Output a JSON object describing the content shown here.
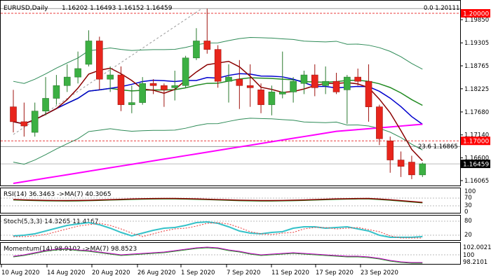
{
  "header": {
    "symbol": "EURUSD,Daily",
    "ohlc": "1.16202 1.16493 1.16152 1.16459",
    "fib_top_label": "0.0 1.20111",
    "fib_mid_label": "23.6 1.16865"
  },
  "colors": {
    "bull": "#3cb043",
    "bear": "#e8251c",
    "sma_fast": "#8b0000",
    "sma_mid": "#0000cd",
    "sma_slow": "#ff00ff",
    "bb": "#2e8b57",
    "ema": "#228b22",
    "hline_red": "#e83b3b",
    "price_tag": "#ff0000",
    "current_tag": "#000000",
    "cyan": "#35c2c9"
  },
  "price_axis": {
    "ticks": [
      "1.19850",
      "1.19305",
      "1.18765",
      "1.18225",
      "1.17680",
      "1.17140",
      "1.16600",
      "1.16065"
    ],
    "levels": {
      "resistance": "1.20000",
      "support": "1.17000",
      "current": "1.16459"
    }
  },
  "panels": {
    "rsi": {
      "label": "RSI(14) 36.3463 ->MA(7) 40.3065",
      "ticks": [
        "100",
        "70",
        "30",
        "0"
      ]
    },
    "stoch": {
      "label": "Stoch(5,3,3) 14.3265 11.4167",
      "ticks": [
        "80",
        "20"
      ]
    },
    "momentum": {
      "label": "Momentum(14) 98.9102 ->MA(7) 98.8523",
      "ticks": [
        "102.0021",
        "100",
        "98.2101"
      ]
    }
  },
  "x_axis": {
    "labels": [
      "10 Aug 2020",
      "14 Aug 2020",
      "20 Aug 2020",
      "26 Aug 2020",
      "1 Sep 2020",
      "7 Sep 2020",
      "11 Sep 2020",
      "17 Sep 2020",
      "23 Sep 2020"
    ]
  },
  "chart_data": {
    "type": "candlestick",
    "symbol": "EURUSD",
    "timeframe": "Daily",
    "candles": [
      {
        "o": 1.178,
        "h": 1.182,
        "l": 1.172,
        "c": 1.1745
      },
      {
        "o": 1.1745,
        "h": 1.179,
        "l": 1.171,
        "c": 1.1735
      },
      {
        "o": 1.172,
        "h": 1.179,
        "l": 1.171,
        "c": 1.177
      },
      {
        "o": 1.177,
        "h": 1.185,
        "l": 1.176,
        "c": 1.18
      },
      {
        "o": 1.18,
        "h": 1.1855,
        "l": 1.1785,
        "c": 1.183
      },
      {
        "o": 1.183,
        "h": 1.188,
        "l": 1.1815,
        "c": 1.185
      },
      {
        "o": 1.185,
        "h": 1.191,
        "l": 1.1835,
        "c": 1.187
      },
      {
        "o": 1.188,
        "h": 1.196,
        "l": 1.1875,
        "c": 1.1935
      },
      {
        "o": 1.1935,
        "h": 1.1945,
        "l": 1.182,
        "c": 1.1845
      },
      {
        "o": 1.1845,
        "h": 1.1875,
        "l": 1.1815,
        "c": 1.1855
      },
      {
        "o": 1.1855,
        "h": 1.1875,
        "l": 1.177,
        "c": 1.1785
      },
      {
        "o": 1.1785,
        "h": 1.183,
        "l": 1.1765,
        "c": 1.179
      },
      {
        "o": 1.179,
        "h": 1.185,
        "l": 1.1785,
        "c": 1.1835
      },
      {
        "o": 1.1835,
        "h": 1.1845,
        "l": 1.181,
        "c": 1.183
      },
      {
        "o": 1.183,
        "h": 1.1835,
        "l": 1.178,
        "c": 1.182
      },
      {
        "o": 1.1825,
        "h": 1.1865,
        "l": 1.1795,
        "c": 1.183
      },
      {
        "o": 1.183,
        "h": 1.19,
        "l": 1.1825,
        "c": 1.1895
      },
      {
        "o": 1.1895,
        "h": 1.1965,
        "l": 1.189,
        "c": 1.1935
      },
      {
        "o": 1.1935,
        "h": 1.2011,
        "l": 1.1905,
        "c": 1.1915
      },
      {
        "o": 1.1915,
        "h": 1.1925,
        "l": 1.1825,
        "c": 1.184
      },
      {
        "o": 1.184,
        "h": 1.188,
        "l": 1.179,
        "c": 1.185
      },
      {
        "o": 1.1845,
        "h": 1.189,
        "l": 1.1775,
        "c": 1.183
      },
      {
        "o": 1.183,
        "h": 1.188,
        "l": 1.178,
        "c": 1.1825
      },
      {
        "o": 1.182,
        "h": 1.1835,
        "l": 1.1765,
        "c": 1.1785
      },
      {
        "o": 1.1785,
        "h": 1.183,
        "l": 1.176,
        "c": 1.1815
      },
      {
        "o": 1.181,
        "h": 1.191,
        "l": 1.18,
        "c": 1.1815
      },
      {
        "o": 1.1815,
        "h": 1.185,
        "l": 1.179,
        "c": 1.184
      },
      {
        "o": 1.1835,
        "h": 1.1865,
        "l": 1.181,
        "c": 1.1855
      },
      {
        "o": 1.1855,
        "h": 1.188,
        "l": 1.1805,
        "c": 1.1825
      },
      {
        "o": 1.183,
        "h": 1.1875,
        "l": 1.181,
        "c": 1.184
      },
      {
        "o": 1.184,
        "h": 1.186,
        "l": 1.181,
        "c": 1.1815
      },
      {
        "o": 1.182,
        "h": 1.1855,
        "l": 1.174,
        "c": 1.185
      },
      {
        "o": 1.185,
        "h": 1.187,
        "l": 1.183,
        "c": 1.184
      },
      {
        "o": 1.184,
        "h": 1.188,
        "l": 1.1745,
        "c": 1.178
      },
      {
        "o": 1.178,
        "h": 1.1785,
        "l": 1.169,
        "c": 1.1705
      },
      {
        "o": 1.17,
        "h": 1.171,
        "l": 1.1625,
        "c": 1.1655
      },
      {
        "o": 1.1655,
        "h": 1.1675,
        "l": 1.1615,
        "c": 1.164
      },
      {
        "o": 1.165,
        "h": 1.1665,
        "l": 1.161,
        "c": 1.162
      },
      {
        "o": 1.162,
        "h": 1.1649,
        "l": 1.1615,
        "c": 1.1646
      }
    ],
    "ylim": [
      1.1595,
      1.2028
    ],
    "legend": "none",
    "grid": false
  }
}
